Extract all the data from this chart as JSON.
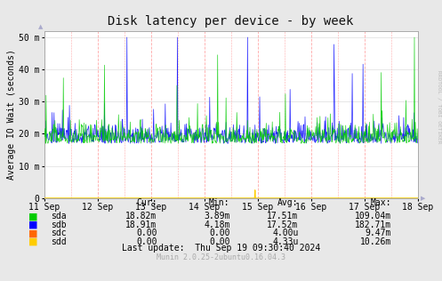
{
  "title": "Disk latency per device - by week",
  "ylabel": "Average IO Wait (seconds)",
  "background_color": "#e8e8e8",
  "plot_bg_color": "#ffffff",
  "ytick_labels": [
    "0",
    "10 m",
    "20 m",
    "30 m",
    "40 m",
    "50 m"
  ],
  "ytick_vals": [
    0,
    10,
    20,
    30,
    40,
    50
  ],
  "ylim": [
    0,
    52
  ],
  "xlim": [
    0,
    1
  ],
  "x_day_labels": [
    "11 Sep",
    "12 Sep",
    "13 Sep",
    "14 Sep",
    "15 Sep",
    "16 Sep",
    "17 Sep",
    "18 Sep"
  ],
  "x_day_positions": [
    0.0,
    0.1429,
    0.2857,
    0.4286,
    0.5714,
    0.7143,
    0.8571,
    1.0
  ],
  "series": [
    {
      "name": "sda",
      "color": "#00cc00"
    },
    {
      "name": "sdb",
      "color": "#0000ff"
    },
    {
      "name": "sdc",
      "color": "#ff6600"
    },
    {
      "name": "sdd",
      "color": "#ffcc00"
    }
  ],
  "legend_headers": [
    "Cur:",
    "Min:",
    "Avg:",
    "Max:"
  ],
  "legend_data": [
    [
      "18.82m",
      "3.89m",
      "17.51m",
      "109.04m"
    ],
    [
      "18.91m",
      "4.18m",
      "17.52m",
      "182.71m"
    ],
    [
      "0.00",
      "0.00",
      "4.00u",
      "9.47m"
    ],
    [
      "0.00",
      "0.00",
      "4.33u",
      "10.26m"
    ]
  ],
  "last_update": "Last update:  Thu Sep 19 09:30:40 2024",
  "munin_version": "Munin 2.0.25-2ubuntu0.16.04.3",
  "right_label": "RRDTOOL / TOBI OETIKER",
  "title_fontsize": 10,
  "axis_fontsize": 7,
  "legend_fontsize": 7,
  "munin_fontsize": 6
}
